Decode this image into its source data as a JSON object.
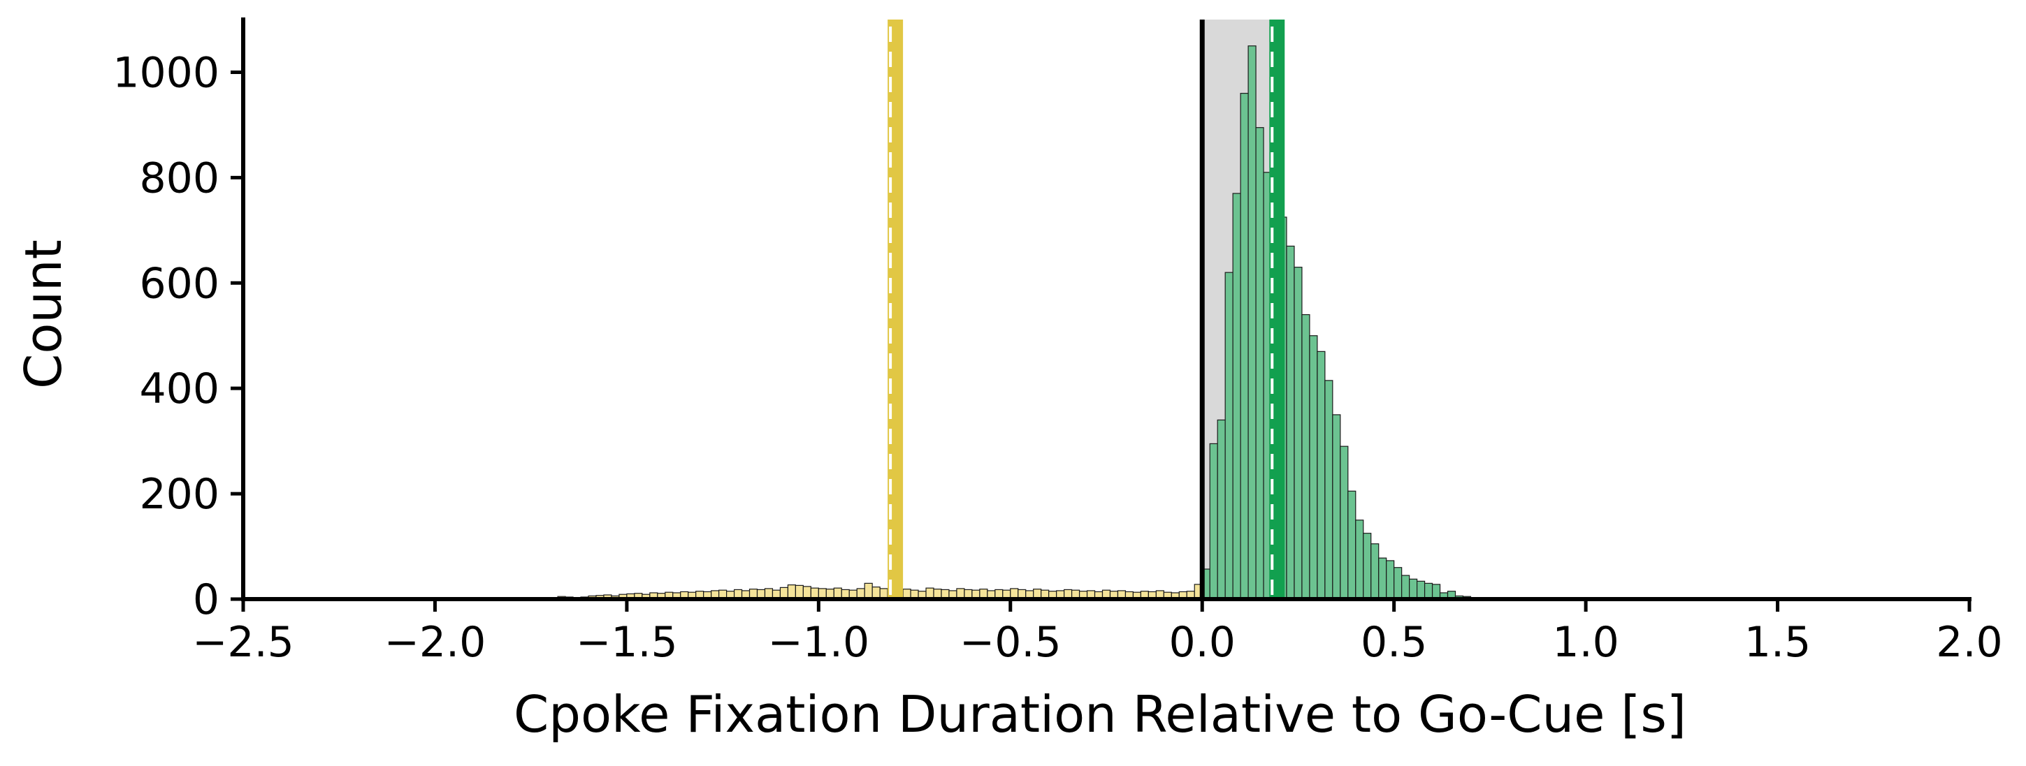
{
  "chart_data": {
    "type": "bar",
    "title": "",
    "xlabel": "Cpoke Fixation Duration Relative to Go-Cue [s]",
    "ylabel": "Count",
    "xlim": [
      -2.5,
      2.0
    ],
    "ylim": [
      0,
      1100
    ],
    "x_ticks": [
      -2.5,
      -2.0,
      -1.5,
      -1.0,
      -0.5,
      0.0,
      0.5,
      1.0,
      1.5,
      2.0
    ],
    "x_tick_labels": [
      "−2.5",
      "−2.0",
      "−1.5",
      "−1.0",
      "−0.5",
      "0.0",
      "0.5",
      "1.0",
      "1.5",
      "2.0"
    ],
    "y_ticks": [
      0,
      200,
      400,
      600,
      800,
      1000
    ],
    "y_tick_labels": [
      "0",
      "200",
      "400",
      "600",
      "800",
      "1000"
    ],
    "grid": false,
    "bin_width": 0.02,
    "series": [
      {
        "color": "#f5e49a",
        "x": [
          -1.84,
          -1.82,
          -1.8,
          -1.78,
          -1.76,
          -1.74,
          -1.72,
          -1.7,
          -1.68,
          -1.66,
          -1.64,
          -1.62,
          -1.6,
          -1.58,
          -1.56,
          -1.54,
          -1.52,
          -1.5,
          -1.48,
          -1.46,
          -1.44,
          -1.42,
          -1.4,
          -1.38,
          -1.36,
          -1.34,
          -1.32,
          -1.3,
          -1.28,
          -1.26,
          -1.24,
          -1.22,
          -1.2,
          -1.18,
          -1.16,
          -1.14,
          -1.12,
          -1.1,
          -1.08,
          -1.06,
          -1.04,
          -1.02,
          -1.0,
          -0.98,
          -0.96,
          -0.94,
          -0.92,
          -0.9,
          -0.88,
          -0.86,
          -0.84,
          -0.82,
          -0.8,
          -0.78,
          -0.76,
          -0.74,
          -0.72,
          -0.7,
          -0.68,
          -0.66,
          -0.64,
          -0.62,
          -0.6,
          -0.58,
          -0.56,
          -0.54,
          -0.52,
          -0.5,
          -0.48,
          -0.46,
          -0.44,
          -0.42,
          -0.4,
          -0.38,
          -0.36,
          -0.34,
          -0.32,
          -0.3,
          -0.28,
          -0.26,
          -0.24,
          -0.22,
          -0.2,
          -0.18,
          -0.16,
          -0.14,
          -0.12,
          -0.1,
          -0.08,
          -0.06,
          -0.04,
          -0.02
        ],
        "values": [
          1,
          0,
          1,
          0,
          1,
          2,
          1,
          2,
          5,
          4,
          3,
          4,
          6,
          7,
          8,
          6,
          9,
          10,
          11,
          9,
          12,
          11,
          13,
          12,
          14,
          13,
          15,
          14,
          16,
          17,
          15,
          18,
          16,
          19,
          18,
          20,
          17,
          22,
          27,
          26,
          24,
          21,
          20,
          19,
          21,
          18,
          17,
          20,
          30,
          23,
          20,
          18,
          16,
          19,
          17,
          15,
          21,
          19,
          18,
          16,
          20,
          18,
          17,
          19,
          16,
          18,
          17,
          20,
          18,
          16,
          19,
          17,
          15,
          16,
          18,
          17,
          15,
          16,
          14,
          17,
          15,
          16,
          14,
          13,
          15,
          14,
          16,
          13,
          12,
          14,
          15,
          28
        ]
      },
      {
        "color": "#6cc391",
        "x": [
          0.0,
          0.02,
          0.04,
          0.06,
          0.08,
          0.1,
          0.12,
          0.14,
          0.16,
          0.18,
          0.2,
          0.22,
          0.24,
          0.26,
          0.28,
          0.3,
          0.32,
          0.34,
          0.36,
          0.38,
          0.4,
          0.42,
          0.44,
          0.46,
          0.48,
          0.5,
          0.52,
          0.54,
          0.56,
          0.58,
          0.6,
          0.62,
          0.64,
          0.66,
          0.68,
          0.7,
          0.72,
          0.74,
          0.76,
          0.78,
          0.8
        ],
        "values": [
          57,
          295,
          340,
          620,
          770,
          960,
          1050,
          895,
          810,
          750,
          725,
          670,
          630,
          540,
          500,
          470,
          415,
          350,
          290,
          205,
          150,
          125,
          105,
          78,
          73,
          60,
          45,
          38,
          34,
          30,
          28,
          12,
          15,
          6,
          5,
          3,
          2,
          1,
          1,
          1,
          1
        ]
      }
    ],
    "vlines": [
      {
        "x": -0.8,
        "color": "#e1c744",
        "style": "dashed"
      },
      {
        "x": 0.0,
        "color": "#000000",
        "style": "solid"
      },
      {
        "x": 0.195,
        "color": "#12a04f",
        "style": "dashed"
      }
    ],
    "shaded_regions": [
      {
        "x0": 0.0,
        "x1": 0.175,
        "color": "#d9d9d9"
      }
    ]
  }
}
